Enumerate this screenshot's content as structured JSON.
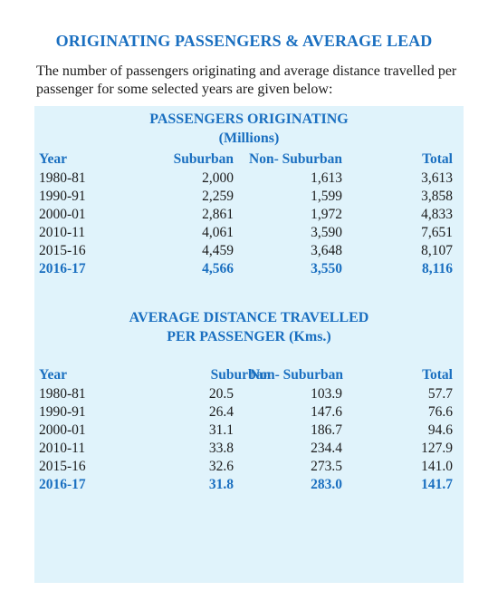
{
  "title": "ORIGINATING PASSENGERS & AVERAGE LEAD",
  "intro": "The number of passengers originating and average distance travelled per passenger for some selected years are given below:",
  "passengers": {
    "title_line1": "PASSENGERS ORIGINATING",
    "title_line2": "(Millions)",
    "headers": {
      "year": "Year",
      "suburban": "Suburban",
      "non_suburban": "Non- Suburban",
      "total": "Total"
    },
    "rows": [
      {
        "year": "1980-81",
        "suburban": "2,000",
        "non_suburban": "1,613",
        "total": "3,613"
      },
      {
        "year": "1990-91",
        "suburban": "2,259",
        "non_suburban": "1,599",
        "total": "3,858"
      },
      {
        "year": "2000-01",
        "suburban": "2,861",
        "non_suburban": "1,972",
        "total": "4,833"
      },
      {
        "year": "2010-11",
        "suburban": "4,061",
        "non_suburban": "3,590",
        "total": "7,651"
      },
      {
        "year": "2015-16",
        "suburban": "4,459",
        "non_suburban": "3,648",
        "total": "8,107"
      },
      {
        "year": "2016-17",
        "suburban": "4,566",
        "non_suburban": "3,550",
        "total": "8,116"
      }
    ]
  },
  "distance": {
    "title_line1": "AVERAGE DISTANCE TRAVELLED",
    "title_line2": "PER PASSENGER (Kms.)",
    "headers": {
      "year": "Year",
      "suburban": "Suburban",
      "non_suburban": "Non- Suburban",
      "total": "Total"
    },
    "rows": [
      {
        "year": "1980-81",
        "suburban": "20.5",
        "non_suburban": "103.9",
        "total": "57.7"
      },
      {
        "year": "1990-91",
        "suburban": "26.4",
        "non_suburban": "147.6",
        "total": "76.6"
      },
      {
        "year": "2000-01",
        "suburban": "31.1",
        "non_suburban": "186.7",
        "total": "94.6"
      },
      {
        "year": "2010-11",
        "suburban": "33.8",
        "non_suburban": "234.4",
        "total": "127.9"
      },
      {
        "year": "2015-16",
        "suburban": "32.6",
        "non_suburban": "273.5",
        "total": "141.0"
      },
      {
        "year": "2016-17",
        "suburban": "31.8",
        "non_suburban": "283.0",
        "total": "141.7"
      }
    ]
  },
  "colors": {
    "accent": "#1a6fc0",
    "panel": "#e0f3fb"
  }
}
